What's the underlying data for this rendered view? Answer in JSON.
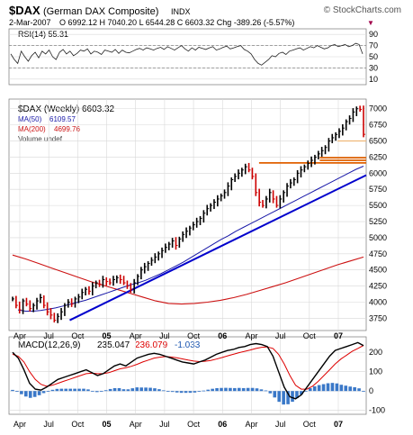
{
  "header": {
    "symbol": "$DAX",
    "name": "(German DAX Composite)",
    "exchange": "INDX",
    "watermark": "© StockCharts.com",
    "date": "2-Mar-2007",
    "quote": "O 6992.12  H 7040.20  L 6544.28  C 6603.32  Chg -389.26 (-5.57%)",
    "down_arrow": "▼"
  },
  "colors": {
    "price_up": "#000000",
    "price_down": "#cc0000",
    "ma50": "#1a1aa8",
    "ma200": "#cc1111",
    "trendline": "#0000cc",
    "resistance": "#e06000",
    "support": "#f0b878",
    "macd_line": "#000000",
    "signal_line": "#dd0000",
    "histogram": "#3a78c8",
    "grid": "#d8d8d8"
  },
  "chart_data": [
    {
      "type": "line",
      "panel": "rsi",
      "label": "RSI(14) 55.31",
      "y_ticks": [
        "90",
        "70",
        "50",
        "30",
        "10"
      ],
      "ylim": [
        0,
        100
      ],
      "reference_lines": [
        70,
        30
      ],
      "series": [
        {
          "name": "RSI(14)",
          "values": [
            55,
            45,
            38,
            60,
            50,
            42,
            52,
            58,
            48,
            60,
            55,
            62,
            50,
            45,
            58,
            63,
            55,
            60,
            52,
            56,
            62,
            60,
            64,
            55,
            60,
            58,
            54,
            62,
            60,
            58,
            63,
            56,
            62,
            58,
            57,
            60,
            63,
            65,
            62,
            66,
            64,
            62,
            65,
            67,
            63,
            68,
            65,
            62,
            66,
            70,
            64,
            60,
            66,
            62,
            67,
            65,
            63,
            66,
            68,
            62,
            64,
            67,
            69,
            64,
            66,
            68,
            70,
            63,
            60,
            55,
            45,
            38,
            35,
            40,
            45,
            52,
            50,
            56,
            58,
            54,
            60,
            62,
            64,
            66,
            62,
            65,
            68,
            66,
            70,
            67,
            64,
            66,
            70,
            72,
            68,
            70,
            72,
            68,
            70,
            74,
            72,
            55
          ]
        }
      ]
    },
    {
      "type": "line",
      "panel": "price",
      "title": "$DAX (Weekly) 6603.32",
      "legend": [
        {
          "name": "MA(50)",
          "value": "6109.57"
        },
        {
          "name": "MA(200)",
          "value": "4699.76"
        },
        {
          "name": "Volume undef",
          "value": ""
        }
      ],
      "y_ticks": [
        7000,
        6750,
        6500,
        6250,
        6000,
        5750,
        5500,
        5250,
        5000,
        4750,
        4500,
        4250,
        4000,
        3750
      ],
      "ylim": [
        3560,
        7150
      ],
      "x_tick_labels": [
        "Apr",
        "Jul",
        "Oct",
        "05",
        "Apr",
        "Jul",
        "Oct",
        "06",
        "Apr",
        "Jul",
        "Oct",
        "07"
      ],
      "series": [
        {
          "name": "$DAX weekly close",
          "values": [
            4050,
            3950,
            3880,
            4020,
            3970,
            3900,
            3950,
            4020,
            4070,
            3950,
            3850,
            3800,
            3720,
            3780,
            3850,
            3950,
            4000,
            3970,
            4050,
            4080,
            4150,
            4200,
            4170,
            4250,
            4300,
            4280,
            4350,
            4320,
            4300,
            4350,
            4380,
            4350,
            4300,
            4250,
            4200,
            4300,
            4400,
            4500,
            4550,
            4600,
            4650,
            4700,
            4750,
            4800,
            4850,
            4900,
            4950,
            4880,
            4980,
            5050,
            5100,
            5150,
            5200,
            5250,
            5300,
            5380,
            5450,
            5500,
            5550,
            5600,
            5650,
            5700,
            5800,
            5900,
            5950,
            6000,
            6050,
            6100,
            6050,
            5950,
            5700,
            5550,
            5500,
            5600,
            5700,
            5600,
            5500,
            5600,
            5700,
            5800,
            5850,
            5900,
            6000,
            6050,
            6100,
            6150,
            6200,
            6250,
            6300,
            6350,
            6400,
            6500,
            6550,
            6600,
            6650,
            6700,
            6800,
            6850,
            6950,
            7000,
            6990,
            6603
          ]
        },
        {
          "name": "MA(50)",
          "values": [
            3880,
            3860,
            3860,
            3870,
            3890,
            3910,
            3940,
            3970,
            4000,
            4030,
            4070,
            4110,
            4150,
            4190,
            4230,
            4270,
            4300,
            4340,
            4390,
            4440,
            4500,
            4560,
            4620,
            4690,
            4760,
            4830,
            4900,
            4970,
            5030,
            5100,
            5160,
            5220,
            5280,
            5340,
            5400,
            5460,
            5520,
            5580,
            5640,
            5700,
            5760,
            5820,
            5880,
            5940,
            6000,
            6060,
            6110
          ]
        },
        {
          "name": "MA(200)",
          "values": [
            4730,
            4670,
            4600,
            4530,
            4460,
            4390,
            4320,
            4260,
            4200,
            4140,
            4080,
            4020,
            3980,
            3970,
            3980,
            4000,
            4030,
            4070,
            4120,
            4180,
            4240,
            4300,
            4370,
            4440,
            4510,
            4580,
            4640,
            4700
          ]
        }
      ],
      "annotations": [
        {
          "type": "trendline",
          "from": [
            0.17,
            3720
          ],
          "to": [
            1.0,
            5970
          ]
        },
        {
          "type": "horizontal",
          "value": 6160,
          "from": 0.7,
          "to": 1.0
        },
        {
          "type": "horizontal",
          "value": 6240,
          "from": 0.87,
          "to": 1.0
        },
        {
          "type": "horizontal",
          "value": 6200,
          "from": 0.87,
          "to": 1.0
        },
        {
          "type": "horizontal",
          "value": 6500,
          "from": 0.92,
          "to": 1.0
        }
      ]
    },
    {
      "type": "line",
      "panel": "macd",
      "label": "MACD(12,26,9)",
      "values_label": [
        "235.047",
        "236.079",
        "-1.033"
      ],
      "y_ticks": [
        200,
        100,
        0,
        -100
      ],
      "ylim": [
        -120,
        280
      ],
      "x_tick_labels": [
        "Apr",
        "Jul",
        "Oct",
        "05",
        "Apr",
        "Jul",
        "Oct",
        "06",
        "Apr",
        "Jul",
        "Oct",
        "07"
      ],
      "series": [
        {
          "name": "MACD",
          "values": [
            200,
            170,
            110,
            40,
            10,
            5,
            20,
            40,
            60,
            70,
            80,
            90,
            100,
            110,
            95,
            80,
            90,
            110,
            130,
            140,
            130,
            150,
            170,
            180,
            190,
            195,
            190,
            180,
            170,
            160,
            150,
            145,
            140,
            150,
            160,
            175,
            190,
            200,
            210,
            215,
            225,
            230,
            240,
            245,
            240,
            230,
            180,
            100,
            20,
            -30,
            -40,
            -20,
            20,
            60,
            100,
            140,
            180,
            210,
            220,
            230,
            240,
            250,
            235
          ]
        },
        {
          "name": "Signal",
          "values": [
            190,
            180,
            150,
            100,
            60,
            35,
            25,
            30,
            40,
            50,
            60,
            70,
            80,
            90,
            92,
            90,
            90,
            95,
            105,
            115,
            120,
            128,
            138,
            150,
            160,
            170,
            175,
            178,
            176,
            172,
            166,
            160,
            155,
            152,
            154,
            158,
            165,
            173,
            182,
            190,
            198,
            205,
            212,
            220,
            226,
            228,
            220,
            190,
            140,
            80,
            30,
            10,
            10,
            25,
            50,
            80,
            110,
            140,
            165,
            185,
            205,
            220,
            236
          ]
        }
      ]
    }
  ]
}
